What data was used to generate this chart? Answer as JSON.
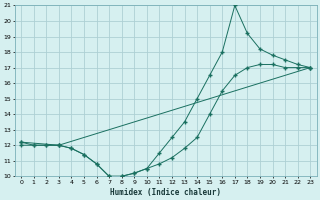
{
  "xlabel": "Humidex (Indice chaleur)",
  "bg_color": "#d6f0f0",
  "grid_color": "#aed0d4",
  "line_color": "#1a7060",
  "xlim": [
    -0.5,
    23.5
  ],
  "ylim": [
    10,
    21
  ],
  "xticks": [
    0,
    1,
    2,
    3,
    4,
    5,
    6,
    7,
    8,
    9,
    10,
    11,
    12,
    13,
    14,
    15,
    16,
    17,
    18,
    19,
    20,
    21,
    22,
    23
  ],
  "yticks": [
    10,
    11,
    12,
    13,
    14,
    15,
    16,
    17,
    18,
    19,
    20,
    21
  ],
  "line1_x": [
    0,
    1,
    2,
    3,
    4,
    5,
    6,
    7,
    8,
    9,
    10,
    11,
    12,
    13,
    14,
    15,
    16,
    17,
    18,
    19,
    20,
    21,
    22,
    23
  ],
  "line1_y": [
    12,
    12,
    12,
    12,
    11.8,
    11.4,
    10.8,
    10.0,
    10.0,
    10.2,
    10.5,
    10.8,
    11.2,
    11.8,
    12.5,
    14.0,
    15.5,
    16.5,
    17.0,
    17.2,
    17.2,
    17.0,
    17.0,
    17.0
  ],
  "line2_x": [
    0,
    1,
    2,
    3,
    4,
    5,
    6,
    7,
    8,
    9,
    10,
    11,
    12,
    13,
    14,
    15,
    16,
    17,
    18,
    19,
    20,
    21,
    22,
    23
  ],
  "line2_y": [
    12.2,
    12,
    12,
    12,
    11.8,
    11.4,
    10.8,
    10.0,
    10.0,
    10.2,
    10.5,
    11.5,
    12.5,
    13.5,
    15.0,
    16.5,
    18.0,
    21.0,
    19.2,
    18.2,
    17.8,
    17.5,
    17.2,
    17.0
  ],
  "line3_x": [
    0,
    3,
    23
  ],
  "line3_y": [
    12.2,
    12,
    17.0
  ]
}
